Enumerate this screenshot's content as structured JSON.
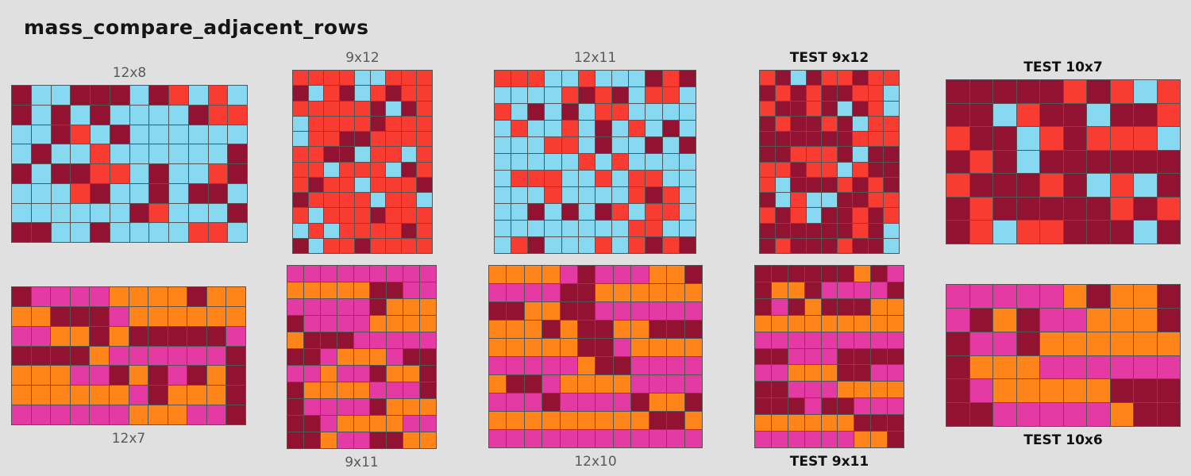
{
  "title": "mass_compare_adjacent_rows",
  "colors": {
    "background": "#e0e0e0",
    "grid_line": "#555555",
    "train_label": "#595959",
    "test_label": "#111111",
    "title": "#151515"
  },
  "chart_data": {
    "type": "heatmap",
    "title": "mass_compare_adjacent_rows",
    "palette": {
      "M": "#921231",
      "R": "#F93C31",
      "B": "#87D8F1",
      "O": "#FF851B",
      "P": "#E53AA3"
    },
    "grids": [
      {
        "id": "train-12x8",
        "label": "12x8",
        "set": "train",
        "label_position": "top",
        "cols": 12,
        "rows": 8,
        "cells": [
          "MBBMMMBMRBRB",
          "MBMBMBBBBMRR",
          "BBMRBMBBBBBB",
          "BMBBRBBBBBBM",
          "MBMMRRBMBBRM",
          "BBBRMBBMBMMB",
          "BBBBBBMRBBBM",
          "MMBBMBBBBRRB"
        ]
      },
      {
        "id": "train-9x12",
        "label": "9x12",
        "set": "train",
        "label_position": "top",
        "cols": 9,
        "rows": 12,
        "cells": [
          "RRRRBBRRR",
          "MBRMBRMRR",
          "RRRRRMBMR",
          "BRRRRMRRR",
          "BRRMMRRRR",
          "RRMMBRRBR",
          "RRBRRRBMR",
          "RMRRBRRRM",
          "MRRRRBRRB",
          "RBRRRMRRR",
          "BRBRRRRMR",
          "MBRRMRRRR"
        ]
      },
      {
        "id": "train-12x11",
        "label": "12x11",
        "set": "train",
        "label_position": "top",
        "cols": 12,
        "rows": 11,
        "cells": [
          "RRRBBRBBBMRM",
          "BBBBRMRMBRRB",
          "RBMBMBRRBBBB",
          "BRBBRBMBRBMB",
          "BBBRRBMBBMBM",
          "BBBBBRBRBBBB",
          "BRRRBBRBRRBB",
          "BBBRBBBBRMRB",
          "BBMBMBMRBRRB",
          "BBBBBBBBRRBB",
          "BRMBBBRBRMRM"
        ]
      },
      {
        "id": "test-9x12",
        "label": "TEST 9x12",
        "set": "test",
        "label_position": "top",
        "cols": 9,
        "rows": 12,
        "cells": [
          "RMBMRRMRR",
          "MRMRMMRRB",
          "RMMRMBMRB",
          "MRMMRMBRR",
          "MMMMMMRRR",
          "MMRRRMBMM",
          "RRMRRBRMM",
          "RBMMMRMRM",
          "MBRBBMMRR",
          "RMRBMMRMR",
          "MMMMMMRMB",
          "MRMMMRMMB"
        ]
      },
      {
        "id": "test-10x7",
        "label": "TEST 10x7",
        "set": "test",
        "label_position": "top",
        "cols": 10,
        "rows": 7,
        "cells": [
          "MMMMMRMRBR",
          "MMBRMMBMMR",
          "RMMBRMRRRB",
          "MRMBMMMMMM",
          "RMMMRMBRBM",
          "MRMMMMMRMR",
          "MRBRRMMMBM"
        ]
      },
      {
        "id": "train-12x7",
        "label": "12x7",
        "set": "train",
        "label_position": "bottom",
        "cols": 12,
        "rows": 7,
        "cells": [
          "MPPPPOOOOMOO",
          "OOMMMPOOOOOO",
          "PPOOMOMMMMMP",
          "MMMMOPPPPPPM",
          "OOOPPMOMPMOM",
          "OOOOOOPMOOOM",
          "PPPPPPOOOPPM"
        ]
      },
      {
        "id": "train-9x11",
        "label": "9x11",
        "set": "train",
        "label_position": "bottom",
        "cols": 9,
        "rows": 11,
        "cells": [
          "PPPPPPPPP",
          "OOOOOMMPP",
          "PPPPPMOOO",
          "MPPPPOOOO",
          "OMMMPPPPP",
          "MMPOOOPMM",
          "PPOPPMOOM",
          "MOOOOPPPM",
          "MPPPPMOOO",
          "MMPOOOOPP",
          "MMOPPMMOO"
        ]
      },
      {
        "id": "train-12x10",
        "label": "12x10",
        "set": "train",
        "label_position": "bottom",
        "cols": 12,
        "rows": 10,
        "cells": [
          "OOOOPMPPPOOM",
          "PPPPMMOOOOOO",
          "MMOOMMPPPPPP",
          "OOOMOMMOOMMM",
          "OOOOOMMPOOOO",
          "PPPPPOMMPPPP",
          "OMMPOOOOPPPP",
          "PPPMPPPPMOOM",
          "OOOOOOOOOMMO",
          "PPPPPPPPPPPP"
        ]
      },
      {
        "id": "test-9x11",
        "label": "TEST 9x11",
        "set": "test",
        "label_position": "bottom",
        "cols": 9,
        "rows": 11,
        "cells": [
          "MMMMMMOMP",
          "MOOMPPPPM",
          "MPMOMMMOO",
          "OOOOOOOOO",
          "PPPPPPPPP",
          "MMPPPMMMM",
          "PPOOOMMPP",
          "MMPPPOOOO",
          "MMMPMMPPP",
          "OOOOOOMMM",
          "PPPPPPOOM"
        ]
      },
      {
        "id": "test-10x6",
        "label": "TEST 10x6",
        "set": "test",
        "label_position": "bottom",
        "cols": 10,
        "rows": 6,
        "cells": [
          "PPPPPOMOOM",
          "PMOMPPOOOM",
          "MPPMOOOOOO",
          "MOOOPPPPPP",
          "MPOOOOOMMM",
          "MMPPPPPOMM"
        ]
      }
    ]
  }
}
